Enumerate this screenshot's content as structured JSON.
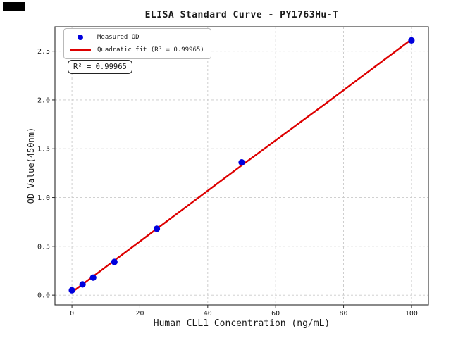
{
  "figure": {
    "background": "#ffffff",
    "artifact_color": "#000000"
  },
  "chart_data": {
    "type": "scatter",
    "title": "ELISA Standard Curve - PY1763Hu-T",
    "xlabel": "Human CLL1 Concentration (ng/mL)",
    "ylabel": "OD Value(450nm)",
    "xlim": [
      -5,
      105
    ],
    "ylim": [
      -0.1,
      2.75
    ],
    "x_tick_values": [
      0,
      20,
      40,
      60,
      80,
      100
    ],
    "x_tick_labels": [
      "0",
      "20",
      "40",
      "60",
      "80",
      "100"
    ],
    "y_tick_values": [
      0.0,
      0.5,
      1.0,
      1.5,
      2.0,
      2.5
    ],
    "y_tick_labels": [
      "0.0",
      "0.5",
      "1.0",
      "1.5",
      "2.0",
      "2.5"
    ],
    "grid": {
      "show": true,
      "color": "#c9c9c9",
      "style": "dashed"
    },
    "spine_color": "#2a2a2a",
    "legend_position": "upper left",
    "series": [
      {
        "name": "Measured OD",
        "type": "scatter",
        "color": "#0000dd",
        "x": [
          0,
          3.125,
          6.25,
          12.5,
          25,
          50,
          100
        ],
        "y": [
          0.05,
          0.11,
          0.18,
          0.34,
          0.68,
          1.36,
          2.61
        ]
      },
      {
        "name": "Quadratic fit (R² = 0.99965)",
        "type": "line",
        "color": "#dd0000",
        "x": [
          0,
          25,
          50,
          75,
          100
        ],
        "y": [
          0.03,
          0.68,
          1.33,
          1.97,
          2.62
        ]
      }
    ],
    "annotation": "R² = 0.99965",
    "r_squared": 0.99965
  }
}
